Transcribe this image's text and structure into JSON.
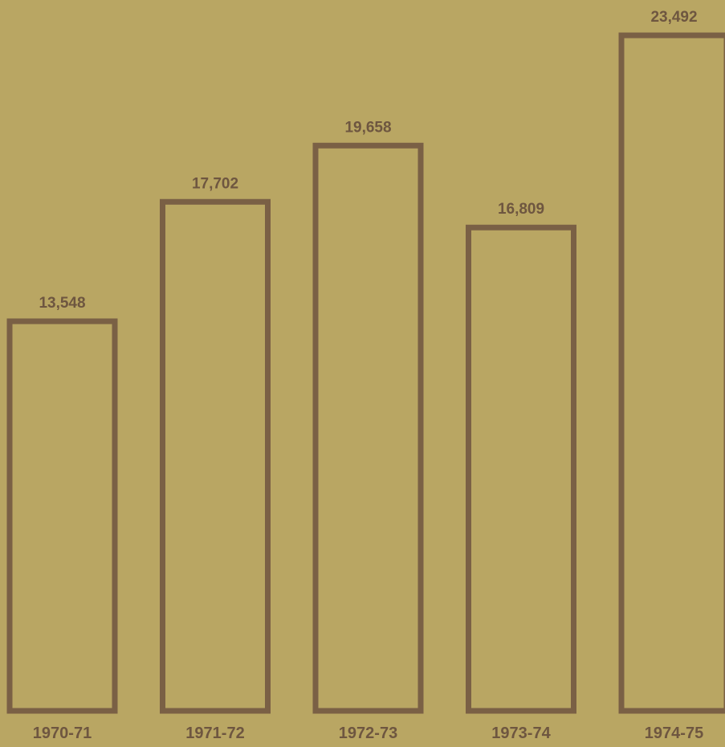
{
  "chart_data": {
    "type": "bar",
    "categories": [
      "1970-71",
      "1971-72",
      "1972-73",
      "1973-74",
      "1974-75"
    ],
    "values": [
      13548,
      17702,
      19658,
      16809,
      23492
    ],
    "value_labels": [
      "13,548",
      "17,702",
      "19,658",
      "16,809",
      "23,492"
    ],
    "title": "",
    "xlabel": "",
    "ylabel": "",
    "ylim": [
      0,
      23492
    ],
    "grid": false,
    "legend": "none",
    "colors": {
      "background": "#b9a663",
      "bar_outline": "#7a6045",
      "text": "#6e5640"
    }
  }
}
